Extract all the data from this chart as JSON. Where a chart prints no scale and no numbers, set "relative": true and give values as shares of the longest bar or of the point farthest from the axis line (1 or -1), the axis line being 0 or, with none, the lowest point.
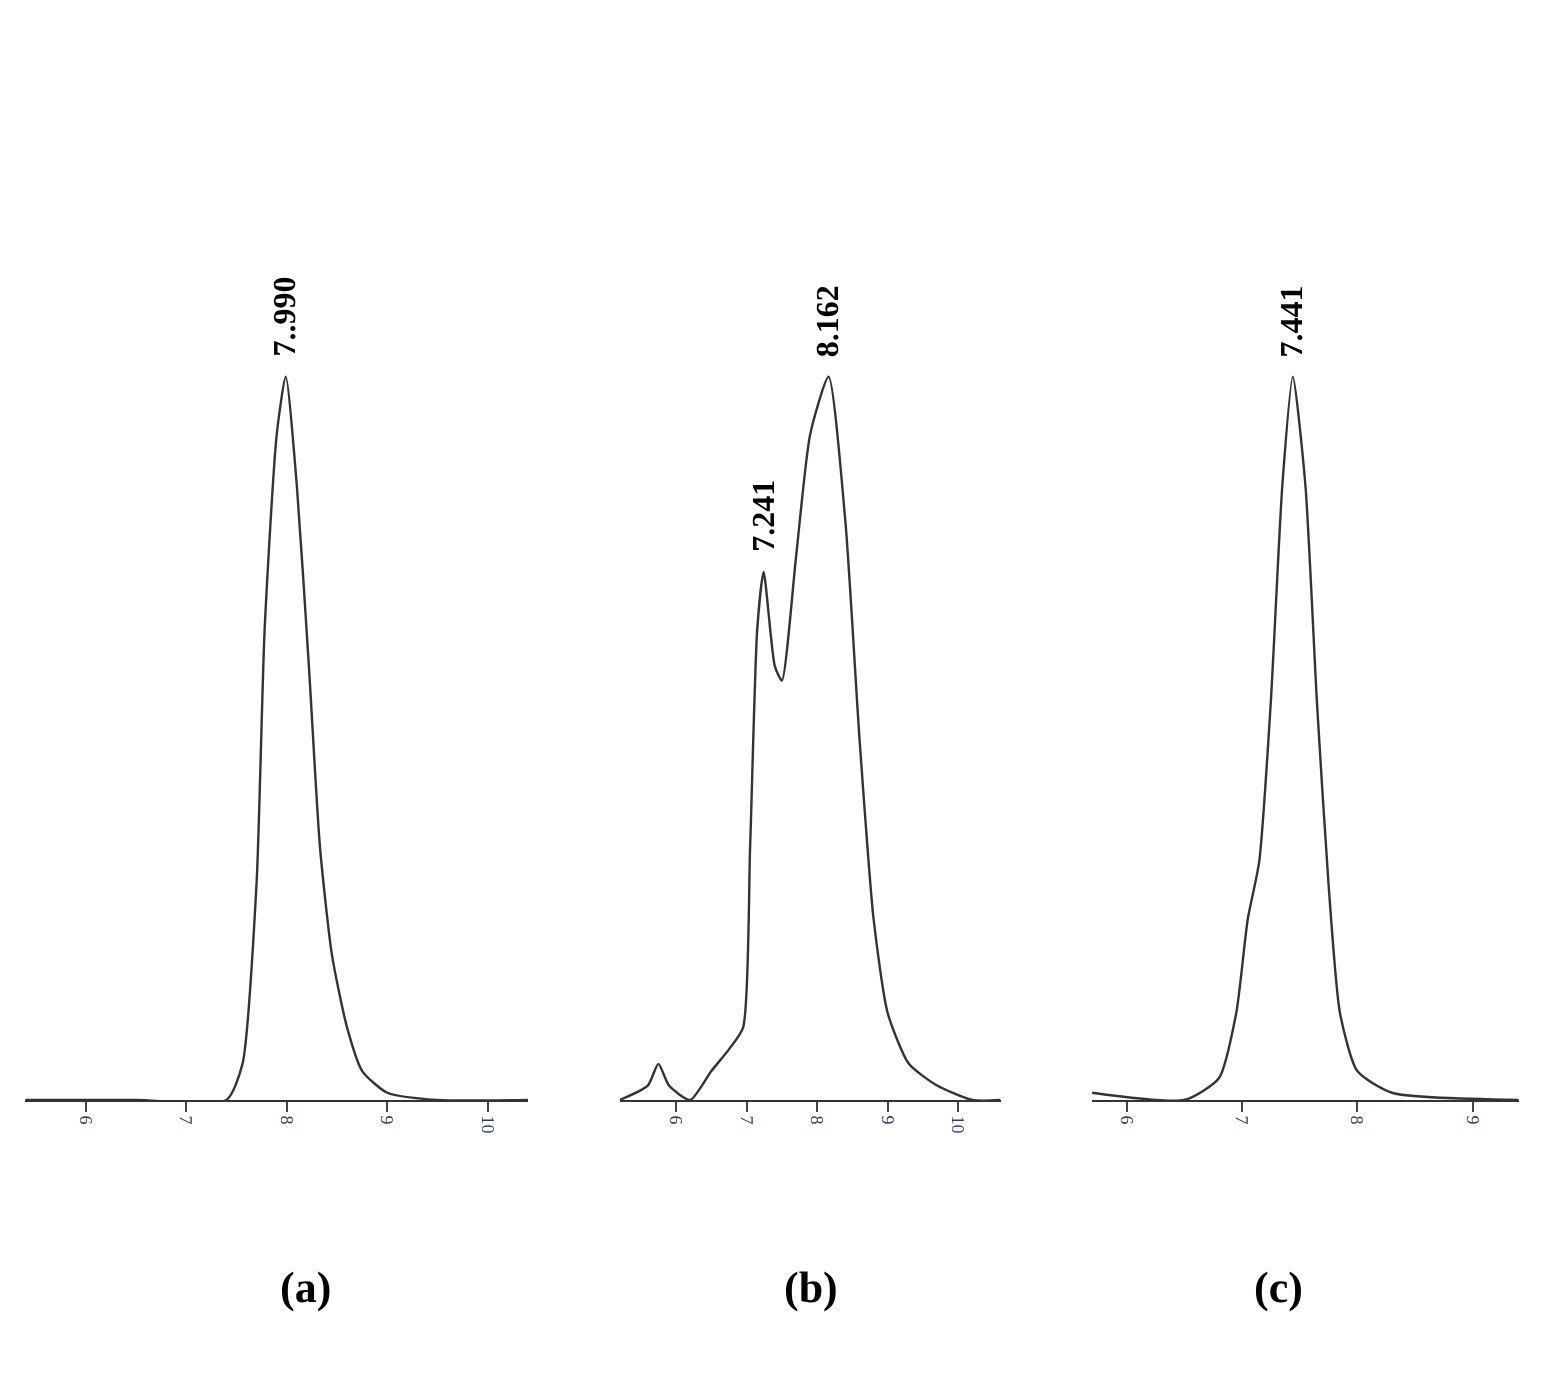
{
  "chart_data": [
    {
      "type": "line",
      "title": "(a)",
      "relative": true,
      "color": "#333333",
      "xlim": [
        5.4,
        10.4
      ],
      "xticks": [
        6,
        7,
        8,
        9,
        10
      ],
      "tick_labels": "x",
      "x": [
        5.4,
        6.5,
        7.4,
        7.56,
        7.7,
        7.78,
        7.9,
        7.99,
        8.1,
        8.22,
        8.33,
        8.45,
        8.6,
        8.75,
        9.0,
        9.5,
        10.4
      ],
      "values": [
        0,
        0,
        0,
        0.05,
        0.3,
        0.65,
        0.92,
        1.0,
        0.85,
        0.6,
        0.35,
        0.2,
        0.1,
        0.04,
        0.01,
        0,
        0
      ],
      "annotations": [
        {
          "text": "7..990",
          "x": 7.99,
          "y": 1.0
        }
      ]
    },
    {
      "type": "line",
      "title": "(b)",
      "relative": true,
      "color": "#333333",
      "xlim": [
        5.2,
        10.6
      ],
      "xticks": [
        6,
        7,
        8,
        9,
        10
      ],
      "tick_labels": "x",
      "x": [
        5.2,
        5.6,
        5.75,
        5.9,
        6.2,
        6.5,
        6.75,
        6.95,
        7.05,
        7.15,
        7.241,
        7.4,
        7.5,
        7.7,
        7.9,
        8.162,
        8.4,
        8.6,
        8.8,
        9.0,
        9.3,
        9.7,
        10.2,
        10.6
      ],
      "values": [
        0,
        0.02,
        0.05,
        0.02,
        0,
        0.04,
        0.07,
        0.1,
        0.35,
        0.65,
        0.73,
        0.6,
        0.58,
        0.75,
        0.92,
        1.0,
        0.8,
        0.5,
        0.25,
        0.12,
        0.05,
        0.02,
        0,
        0
      ],
      "annotations": [
        {
          "text": "8.162",
          "x": 8.162,
          "y": 1.0
        },
        {
          "text": "7.241",
          "x": 7.241,
          "y": 0.73
        }
      ]
    },
    {
      "type": "line",
      "title": "(c)",
      "relative": true,
      "color": "#333333",
      "xlim": [
        5.7,
        9.4
      ],
      "xticks": [
        6,
        7,
        8,
        9
      ],
      "tick_labels": "x",
      "x": [
        5.7,
        6.5,
        6.8,
        6.95,
        7.05,
        7.15,
        7.25,
        7.35,
        7.441,
        7.55,
        7.65,
        7.75,
        7.85,
        8.0,
        8.3,
        9.4
      ],
      "values": [
        0.01,
        0,
        0.03,
        0.12,
        0.25,
        0.33,
        0.55,
        0.85,
        1.0,
        0.85,
        0.55,
        0.3,
        0.12,
        0.04,
        0.01,
        0
      ],
      "annotations": [
        {
          "text": "7.441",
          "x": 7.441,
          "y": 1.0
        }
      ]
    }
  ]
}
